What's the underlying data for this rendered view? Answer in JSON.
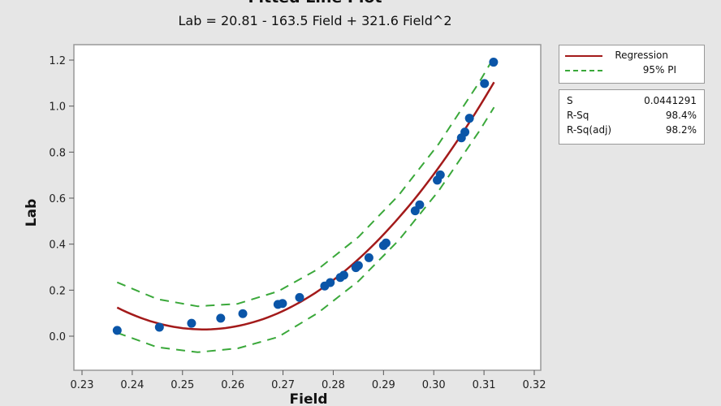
{
  "chart_data": {
    "type": "scatter",
    "title": "Fitted Line Plot",
    "subtitle": "Lab = 20.81 - 163.5 Field + 321.6 Field^2",
    "xlabel": "Field",
    "ylabel": "Lab",
    "xlim": [
      0.23,
      0.32
    ],
    "ylim": [
      0.0,
      1.2
    ],
    "xticks": [
      "0.23",
      "0.24",
      "0.25",
      "0.26",
      "0.27",
      "0.28",
      "0.29",
      "0.30",
      "0.31",
      "0.32"
    ],
    "yticks": [
      "0.0",
      "0.2",
      "0.4",
      "0.6",
      "0.8",
      "1.0",
      "1.2"
    ],
    "grid": false,
    "legend_placement": "right",
    "points": {
      "x": [
        0.237,
        0.2454,
        0.2518,
        0.2576,
        0.262,
        0.269,
        0.2699,
        0.2733,
        0.2783,
        0.2794,
        0.2814,
        0.2821,
        0.2845,
        0.285,
        0.2871,
        0.29,
        0.2905,
        0.2963,
        0.2972,
        0.3007,
        0.3013,
        0.3055,
        0.3062,
        0.3071,
        0.3101,
        0.3119
      ],
      "y": [
        0.025,
        0.039,
        0.056,
        0.078,
        0.098,
        0.138,
        0.142,
        0.168,
        0.218,
        0.233,
        0.255,
        0.265,
        0.298,
        0.307,
        0.341,
        0.394,
        0.405,
        0.545,
        0.571,
        0.678,
        0.701,
        0.862,
        0.887,
        0.947,
        1.098,
        1.191
      ]
    },
    "regression": {
      "name": "Regression",
      "coefficients": [
        20.81,
        -163.5,
        321.6
      ],
      "x_range": [
        0.237,
        0.312
      ],
      "color": "#a31a1a"
    },
    "pi": {
      "name": "95% PI",
      "color": "#3aa83a",
      "x": [
        0.237,
        0.245,
        0.253,
        0.261,
        0.269,
        0.277,
        0.285,
        0.293,
        0.301,
        0.309,
        0.312
      ],
      "upper": [
        0.234,
        0.161,
        0.13,
        0.141,
        0.195,
        0.292,
        0.431,
        0.612,
        0.836,
        1.102,
        1.213
      ],
      "lower": [
        0.015,
        -0.048,
        -0.07,
        -0.053,
        -0.004,
        0.102,
        0.239,
        0.416,
        0.632,
        0.889,
        0.995
      ]
    },
    "point_color": "#0a55a8",
    "stats": [
      {
        "label": "S",
        "value": "0.0441291"
      },
      {
        "label": "R-Sq",
        "value": "98.4%"
      },
      {
        "label": "R-Sq(adj)",
        "value": "98.2%"
      }
    ]
  }
}
